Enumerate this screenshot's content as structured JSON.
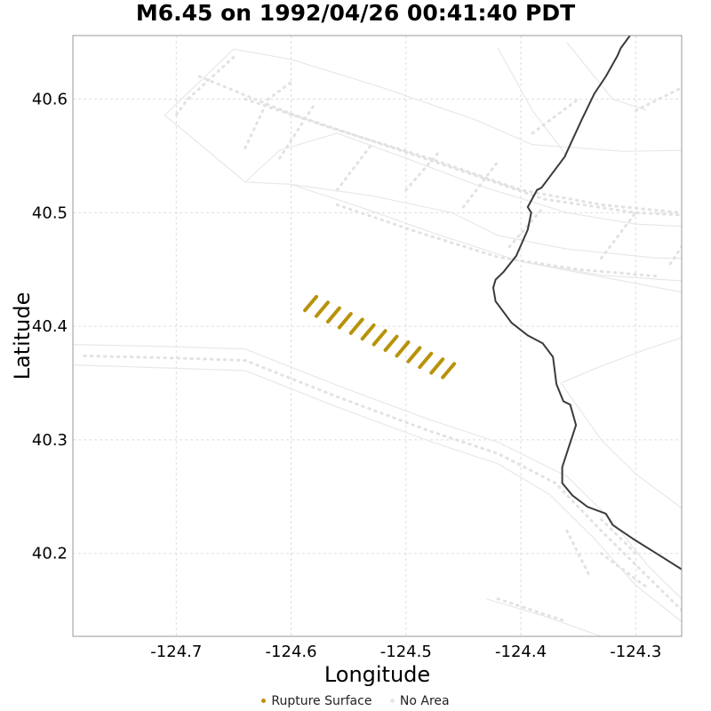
{
  "chart_data": {
    "type": "line",
    "title": "M6.45 on 1992/04/26 00:41:40 PDT",
    "xlabel": "Longitude",
    "ylabel": "Latitude",
    "xlim": [
      -124.79,
      -124.26
    ],
    "ylim": [
      40.127,
      40.656
    ],
    "x_ticks": [
      -124.7,
      -124.6,
      -124.5,
      -124.4,
      -124.3
    ],
    "x_tick_labels": [
      "-124.7",
      "-124.6",
      "-124.5",
      "-124.4",
      "-124.3"
    ],
    "y_ticks": [
      40.2,
      40.3,
      40.4,
      40.5,
      40.6
    ],
    "y_tick_labels": [
      "40.2",
      "40.3",
      "40.4",
      "40.5",
      "40.6"
    ],
    "grid": true,
    "legend_position": "bottom",
    "legend": [
      {
        "label": "Rupture Surface",
        "color": "#b8920a"
      },
      {
        "label": "No Area",
        "color": "#e6e6e6"
      }
    ],
    "rupture_segments": [
      [
        [
          -124.588,
          40.414
        ],
        [
          -124.578,
          40.426
        ]
      ],
      [
        [
          -124.578,
          40.409
        ],
        [
          -124.568,
          40.421
        ]
      ],
      [
        [
          -124.568,
          40.404
        ],
        [
          -124.558,
          40.416
        ]
      ],
      [
        [
          -124.558,
          40.399
        ],
        [
          -124.548,
          40.411
        ]
      ],
      [
        [
          -124.548,
          40.394
        ],
        [
          -124.538,
          40.406
        ]
      ],
      [
        [
          -124.538,
          40.389
        ],
        [
          -124.528,
          40.401
        ]
      ],
      [
        [
          -124.528,
          40.384
        ],
        [
          -124.518,
          40.396
        ]
      ],
      [
        [
          -124.518,
          40.379
        ],
        [
          -124.508,
          40.391
        ]
      ],
      [
        [
          -124.508,
          40.374
        ],
        [
          -124.498,
          40.386
        ]
      ],
      [
        [
          -124.498,
          40.369
        ],
        [
          -124.488,
          40.381
        ]
      ],
      [
        [
          -124.488,
          40.364
        ],
        [
          -124.478,
          40.376
        ]
      ],
      [
        [
          -124.478,
          40.359
        ],
        [
          -124.468,
          40.371
        ]
      ],
      [
        [
          -124.468,
          40.355
        ],
        [
          -124.458,
          40.367
        ]
      ]
    ],
    "coastline": [
      [
        -124.305,
        40.656
      ],
      [
        -124.313,
        40.645
      ],
      [
        -124.316,
        40.638
      ],
      [
        -124.326,
        40.62
      ],
      [
        -124.336,
        40.605
      ],
      [
        -124.347,
        40.582
      ],
      [
        -124.362,
        40.549
      ],
      [
        -124.382,
        40.522
      ],
      [
        -124.386,
        40.52
      ],
      [
        -124.394,
        40.505
      ],
      [
        -124.391,
        40.5
      ],
      [
        -124.394,
        40.485
      ],
      [
        -124.404,
        40.462
      ],
      [
        -124.415,
        40.448
      ],
      [
        -124.422,
        40.441
      ],
      [
        -124.424,
        40.434
      ],
      [
        -124.422,
        40.422
      ],
      [
        -124.408,
        40.403
      ],
      [
        -124.394,
        40.392
      ],
      [
        -124.381,
        40.385
      ],
      [
        -124.372,
        40.373
      ],
      [
        -124.369,
        40.349
      ],
      [
        -124.363,
        40.334
      ],
      [
        -124.357,
        40.331
      ],
      [
        -124.352,
        40.313
      ],
      [
        -124.364,
        40.276
      ],
      [
        -124.364,
        40.262
      ],
      [
        -124.355,
        40.251
      ],
      [
        -124.342,
        40.241
      ],
      [
        -124.326,
        40.235
      ],
      [
        -124.32,
        40.225
      ],
      [
        -124.301,
        40.212
      ],
      [
        -124.282,
        40.2
      ],
      [
        -124.26,
        40.186
      ]
    ],
    "no_area_lines": [
      [
        [
          -124.79,
          40.384
        ],
        [
          -124.7,
          40.382
        ],
        [
          -124.64,
          40.38
        ],
        [
          -124.56,
          40.348
        ],
        [
          -124.48,
          40.318
        ],
        [
          -124.42,
          40.298
        ],
        [
          -124.36,
          40.268
        ],
        [
          -124.32,
          40.228
        ],
        [
          -124.29,
          40.19
        ],
        [
          -124.26,
          40.16
        ]
      ],
      [
        [
          -124.79,
          40.366
        ],
        [
          -124.7,
          40.363
        ],
        [
          -124.64,
          40.361
        ],
        [
          -124.56,
          40.329
        ],
        [
          -124.48,
          40.299
        ],
        [
          -124.42,
          40.279
        ],
        [
          -124.375,
          40.252
        ],
        [
          -124.335,
          40.212
        ],
        [
          -124.3,
          40.172
        ],
        [
          -124.26,
          40.14
        ]
      ],
      [
        [
          -124.71,
          40.586
        ],
        [
          -124.65,
          40.644
        ],
        [
          -124.6,
          40.635
        ],
        [
          -124.52,
          40.61
        ],
        [
          -124.44,
          40.582
        ],
        [
          -124.39,
          40.56
        ],
        [
          -124.31,
          40.554
        ],
        [
          -124.26,
          40.555
        ]
      ],
      [
        [
          -124.71,
          40.586
        ],
        [
          -124.64,
          40.527
        ],
        [
          -124.6,
          40.525
        ],
        [
          -124.53,
          40.515
        ],
        [
          -124.46,
          40.5
        ],
        [
          -124.42,
          40.48
        ],
        [
          -124.36,
          40.468
        ],
        [
          -124.28,
          40.46
        ],
        [
          -124.26,
          40.46
        ]
      ],
      [
        [
          -124.64,
          40.527
        ],
        [
          -124.61,
          40.555
        ],
        [
          -124.56,
          40.57
        ],
        [
          -124.5,
          40.548
        ],
        [
          -124.44,
          40.525
        ],
        [
          -124.36,
          40.5
        ],
        [
          -124.3,
          40.49
        ],
        [
          -124.26,
          40.488
        ]
      ],
      [
        [
          -124.6,
          40.525
        ],
        [
          -124.54,
          40.505
        ],
        [
          -124.47,
          40.48
        ],
        [
          -124.4,
          40.457
        ],
        [
          -124.33,
          40.445
        ],
        [
          -124.26,
          40.44
        ]
      ],
      [
        [
          -124.4,
          40.457
        ],
        [
          -124.26,
          40.43
        ]
      ],
      [
        [
          -124.43,
          40.16
        ],
        [
          -124.38,
          40.145
        ],
        [
          -124.33,
          40.127
        ]
      ],
      [
        [
          -124.36,
          40.65
        ],
        [
          -124.32,
          40.6
        ],
        [
          -124.29,
          40.59
        ]
      ],
      [
        [
          -124.42,
          40.645
        ],
        [
          -124.39,
          40.59
        ],
        [
          -124.36,
          40.55
        ]
      ],
      [
        [
          -124.365,
          40.35
        ],
        [
          -124.33,
          40.365
        ],
        [
          -124.29,
          40.38
        ],
        [
          -124.26,
          40.39
        ]
      ],
      [
        [
          -124.365,
          40.35
        ],
        [
          -124.33,
          40.3
        ],
        [
          -124.3,
          40.27
        ],
        [
          -124.26,
          40.24
        ]
      ]
    ],
    "no_area_dotted": [
      [
        [
          -124.68,
          40.62
        ],
        [
          -124.6,
          40.587
        ],
        [
          -124.52,
          40.56
        ],
        [
          -124.44,
          40.533
        ],
        [
          -124.38,
          40.512
        ],
        [
          -124.3,
          40.5
        ],
        [
          -124.26,
          40.498
        ]
      ],
      [
        [
          -124.64,
          40.6
        ],
        [
          -124.56,
          40.573
        ],
        [
          -124.48,
          40.548
        ],
        [
          -124.4,
          40.52
        ],
        [
          -124.33,
          40.507
        ],
        [
          -124.26,
          40.5
        ]
      ],
      [
        [
          -124.56,
          40.507
        ],
        [
          -124.49,
          40.483
        ],
        [
          -124.42,
          40.461
        ],
        [
          -124.35,
          40.45
        ],
        [
          -124.28,
          40.444
        ]
      ],
      [
        [
          -124.78,
          40.374
        ],
        [
          -124.7,
          40.372
        ],
        [
          -124.64,
          40.37
        ],
        [
          -124.56,
          40.338
        ],
        [
          -124.48,
          40.308
        ],
        [
          -124.42,
          40.288
        ],
        [
          -124.37,
          40.262
        ],
        [
          -124.33,
          40.22
        ],
        [
          -124.29,
          40.18
        ],
        [
          -124.26,
          40.15
        ]
      ],
      [
        [
          -124.65,
          40.637
        ],
        [
          -124.69,
          40.6
        ],
        [
          -124.7,
          40.586
        ]
      ],
      [
        [
          -124.64,
          40.557
        ],
        [
          -124.62,
          40.6
        ],
        [
          -124.6,
          40.615
        ]
      ],
      [
        [
          -124.61,
          40.548
        ],
        [
          -124.58,
          40.595
        ]
      ],
      [
        [
          -124.56,
          40.52
        ],
        [
          -124.53,
          40.56
        ]
      ],
      [
        [
          -124.5,
          40.52
        ],
        [
          -124.47,
          40.555
        ]
      ],
      [
        [
          -124.45,
          40.505
        ],
        [
          -124.42,
          40.545
        ]
      ],
      [
        [
          -124.41,
          40.47
        ],
        [
          -124.38,
          40.505
        ]
      ],
      [
        [
          -124.33,
          40.46
        ],
        [
          -124.3,
          40.5
        ]
      ],
      [
        [
          -124.27,
          40.455
        ],
        [
          -124.26,
          40.47
        ]
      ],
      [
        [
          -124.3,
          40.59
        ],
        [
          -124.26,
          40.61
        ]
      ],
      [
        [
          -124.39,
          40.57
        ],
        [
          -124.35,
          40.6
        ]
      ],
      [
        [
          -124.33,
          40.23
        ],
        [
          -124.3,
          40.2
        ]
      ],
      [
        [
          -124.42,
          40.16
        ],
        [
          -124.36,
          40.14
        ]
      ],
      [
        [
          -124.33,
          40.2
        ],
        [
          -124.29,
          40.17
        ]
      ],
      [
        [
          -124.36,
          40.22
        ],
        [
          -124.34,
          40.18
        ]
      ]
    ]
  }
}
